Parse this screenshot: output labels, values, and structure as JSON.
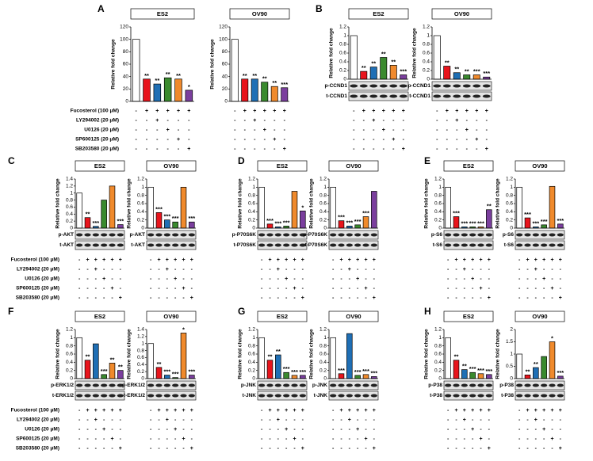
{
  "colors": [
    "#ffffff",
    "#e8141c",
    "#1f6fb5",
    "#3a8a2e",
    "#f08a2c",
    "#7b3f9e"
  ],
  "treatments": [
    {
      "name": "Fucosterol (100 μM)",
      "color": "#e8141c",
      "signs": [
        "-",
        "+",
        "+",
        "+",
        "+",
        "+"
      ]
    },
    {
      "name": "LY294002 (20 μM)",
      "color": "#1f3fb5",
      "signs": [
        "-",
        "-",
        "+",
        "-",
        "-",
        "-"
      ]
    },
    {
      "name": "U0126 (20 μM)",
      "color": "#1a9a3a",
      "signs": [
        "-",
        "-",
        "-",
        "+",
        "-",
        "-"
      ]
    },
    {
      "name": "SP600125 (20 μM)",
      "color": "#f08a2c",
      "signs": [
        "-",
        "-",
        "-",
        "-",
        "+",
        "-"
      ]
    },
    {
      "name": "SB203580 (20 μM)",
      "color": "#8a3fae",
      "signs": [
        "-",
        "-",
        "-",
        "-",
        "-",
        "+"
      ]
    }
  ],
  "chart_data": [
    {
      "type": "bar",
      "panel": "A",
      "title": "ES2",
      "ylabel": "Relative fold change",
      "values": [
        100,
        36,
        28,
        38,
        36,
        18
      ],
      "annotations": [
        null,
        "**",
        "**",
        "**",
        "**",
        "*"
      ],
      "ylim": [
        0,
        120
      ],
      "yticks": [
        0,
        20,
        40,
        60,
        80,
        100,
        120
      ]
    },
    {
      "type": "bar",
      "title": "OV90",
      "ylabel": "Relative fold change",
      "values": [
        100,
        36,
        36,
        31,
        24,
        22
      ],
      "annotations": [
        null,
        "**",
        "**",
        "**",
        "**",
        "***"
      ],
      "ylim": [
        0,
        120
      ],
      "yticks": [
        0,
        20,
        40,
        60,
        80,
        100,
        120
      ]
    },
    {
      "type": "bar",
      "panel": "B",
      "title": "ES2",
      "ylabel": "Relative fold change",
      "values": [
        1.0,
        0.18,
        0.28,
        0.5,
        0.32,
        0.1
      ],
      "annotations": [
        null,
        "**",
        "**",
        "**",
        "**",
        "***"
      ],
      "ylim": [
        0,
        1.2
      ],
      "yticks": [
        0,
        0.2,
        0.4,
        0.6,
        0.8,
        1,
        1.2
      ],
      "blots": [
        "p-CCND1",
        "t-CCND1"
      ]
    },
    {
      "type": "bar",
      "title": "OV90",
      "ylabel": "Relative fold change",
      "values": [
        1.0,
        0.3,
        0.15,
        0.1,
        0.1,
        0.05
      ],
      "annotations": [
        null,
        "**",
        "**",
        "**",
        "***",
        "***"
      ],
      "ylim": [
        0,
        1.2
      ],
      "yticks": [
        0,
        0.2,
        0.4,
        0.6,
        0.8,
        1,
        1.2
      ],
      "blots": [
        "p-CCND1",
        "t-CCND1"
      ]
    },
    {
      "type": "bar",
      "panel": "C",
      "title": "ES2",
      "ylabel": "Relative fold change",
      "values": [
        1.0,
        0.3,
        0.05,
        0.8,
        1.2,
        0.1
      ],
      "annotations": [
        null,
        "**",
        "***",
        null,
        null,
        "***"
      ],
      "ylim": [
        0,
        1.4
      ],
      "yticks": [
        0,
        0.2,
        0.4,
        0.6,
        0.8,
        1,
        1.2,
        1.4
      ],
      "blots": [
        "p-AKT",
        "t-AKT"
      ]
    },
    {
      "type": "bar",
      "title": "OV90",
      "ylabel": "Relative fold change",
      "values": [
        1.0,
        0.38,
        0.2,
        0.15,
        1.0,
        0.15
      ],
      "annotations": [
        null,
        "***",
        "***",
        "***",
        null,
        "***"
      ],
      "ylim": [
        0,
        1.2
      ],
      "yticks": [
        0,
        0.2,
        0.4,
        0.6,
        0.8,
        1,
        1.2
      ],
      "blots": [
        "p-AKT",
        "t-AKT"
      ]
    },
    {
      "type": "bar",
      "panel": "D",
      "title": "ES2",
      "ylabel": "Relative fold change",
      "values": [
        1.0,
        0.1,
        0.03,
        0.05,
        0.9,
        0.42
      ],
      "annotations": [
        null,
        "***",
        "***",
        "***",
        null,
        "*"
      ],
      "ylim": [
        0,
        1.2
      ],
      "yticks": [
        0,
        0.2,
        0.4,
        0.6,
        0.8,
        1,
        1.2
      ],
      "blots": [
        "p-P70S6K",
        "t-P70S6K"
      ]
    },
    {
      "type": "bar",
      "title": "OV90",
      "ylabel": "Relative fold change",
      "values": [
        1.0,
        0.18,
        0.05,
        0.08,
        0.28,
        0.9
      ],
      "annotations": [
        null,
        "***",
        "***",
        "***",
        "***",
        null
      ],
      "ylim": [
        0,
        1.2
      ],
      "yticks": [
        0,
        0.2,
        0.4,
        0.6,
        0.8,
        1,
        1.2
      ],
      "blots": [
        "p-P70S6K",
        "t-P70S6K"
      ]
    },
    {
      "type": "bar",
      "panel": "E",
      "title": "ES2",
      "ylabel": "Relative fold change",
      "values": [
        1.0,
        0.28,
        0.03,
        0.03,
        0.03,
        0.45
      ],
      "annotations": [
        null,
        "***",
        "***",
        "***",
        "***",
        "**"
      ],
      "ylim": [
        0,
        1.2
      ],
      "yticks": [
        0,
        0.2,
        0.4,
        0.6,
        0.8,
        1,
        1.2
      ],
      "blots": [
        "p-S6",
        "t-S6"
      ]
    },
    {
      "type": "bar",
      "title": "OV90",
      "ylabel": "Relative fold change",
      "values": [
        1.0,
        0.25,
        0.03,
        0.08,
        1.02,
        0.1
      ],
      "annotations": [
        null,
        "***",
        "***",
        "***",
        null,
        "***"
      ],
      "ylim": [
        0,
        1.2
      ],
      "yticks": [
        0,
        0.2,
        0.4,
        0.6,
        0.8,
        1,
        1.2
      ],
      "blots": [
        "p-S6",
        "t-S6"
      ]
    },
    {
      "type": "bar",
      "panel": "F",
      "title": "ES2",
      "ylabel": "Relative fold change",
      "values": [
        1.0,
        0.45,
        0.85,
        0.1,
        0.38,
        0.2
      ],
      "annotations": [
        null,
        "**",
        null,
        "***",
        "**",
        "**"
      ],
      "ylim": [
        0,
        1.2
      ],
      "yticks": [
        0,
        0.2,
        0.4,
        0.6,
        0.8,
        1,
        1.2
      ],
      "blots": [
        "p-ERK1/2",
        "t-ERK1/2"
      ]
    },
    {
      "type": "bar",
      "title": "OV90",
      "ylabel": "Relative fold change",
      "values": [
        1.0,
        0.32,
        0.1,
        0.03,
        1.3,
        0.1
      ],
      "annotations": [
        null,
        "**",
        "***",
        "***",
        "*",
        "***"
      ],
      "ylim": [
        0,
        1.4
      ],
      "yticks": [
        0,
        0.2,
        0.4,
        0.6,
        0.8,
        1,
        1.2,
        1.4
      ],
      "blots": [
        "p-ERK1/2",
        "t-ERK1/2"
      ]
    },
    {
      "type": "bar",
      "panel": "G",
      "title": "ES2",
      "ylabel": "Relative fold change",
      "values": [
        1.0,
        0.45,
        0.58,
        0.15,
        0.08,
        0.08
      ],
      "annotations": [
        null,
        "**",
        "**",
        "***",
        "***",
        "***"
      ],
      "ylim": [
        0,
        1.2
      ],
      "yticks": [
        0,
        0.2,
        0.4,
        0.6,
        0.8,
        1,
        1.2
      ],
      "blots": [
        "p-JNK",
        "t-JNK"
      ]
    },
    {
      "type": "bar",
      "title": "OV90",
      "ylabel": "Relative fold change",
      "values": [
        1.0,
        0.12,
        1.1,
        0.08,
        0.1,
        0.05
      ],
      "annotations": [
        null,
        "***",
        null,
        "***",
        "***",
        "***"
      ],
      "ylim": [
        0,
        1.2
      ],
      "yticks": [
        0,
        0.2,
        0.4,
        0.6,
        0.8,
        1,
        1.2
      ],
      "blots": [
        "p-JNK",
        "t-JNK"
      ]
    },
    {
      "type": "bar",
      "panel": "H",
      "title": "ES2",
      "ylabel": "Relative fold change",
      "values": [
        1.0,
        0.45,
        0.22,
        0.15,
        0.12,
        0.1
      ],
      "annotations": [
        null,
        "**",
        "**",
        "***",
        "***",
        "***"
      ],
      "ylim": [
        0,
        1.2
      ],
      "yticks": [
        0,
        0.2,
        0.4,
        0.6,
        0.8,
        1,
        1.2
      ],
      "blots": [
        "p-P38",
        "t-P38"
      ]
    },
    {
      "type": "bar",
      "title": "OV90",
      "ylabel": "Relative fold change",
      "values": [
        1.0,
        0.15,
        0.45,
        0.9,
        1.5,
        0.1
      ],
      "annotations": [
        null,
        "**",
        "**",
        null,
        "*",
        "***"
      ],
      "ylim": [
        0,
        2
      ],
      "yticks": [
        0,
        0.5,
        1,
        1.5,
        2
      ],
      "blots": [
        "p-P38",
        "t-P38"
      ]
    }
  ]
}
